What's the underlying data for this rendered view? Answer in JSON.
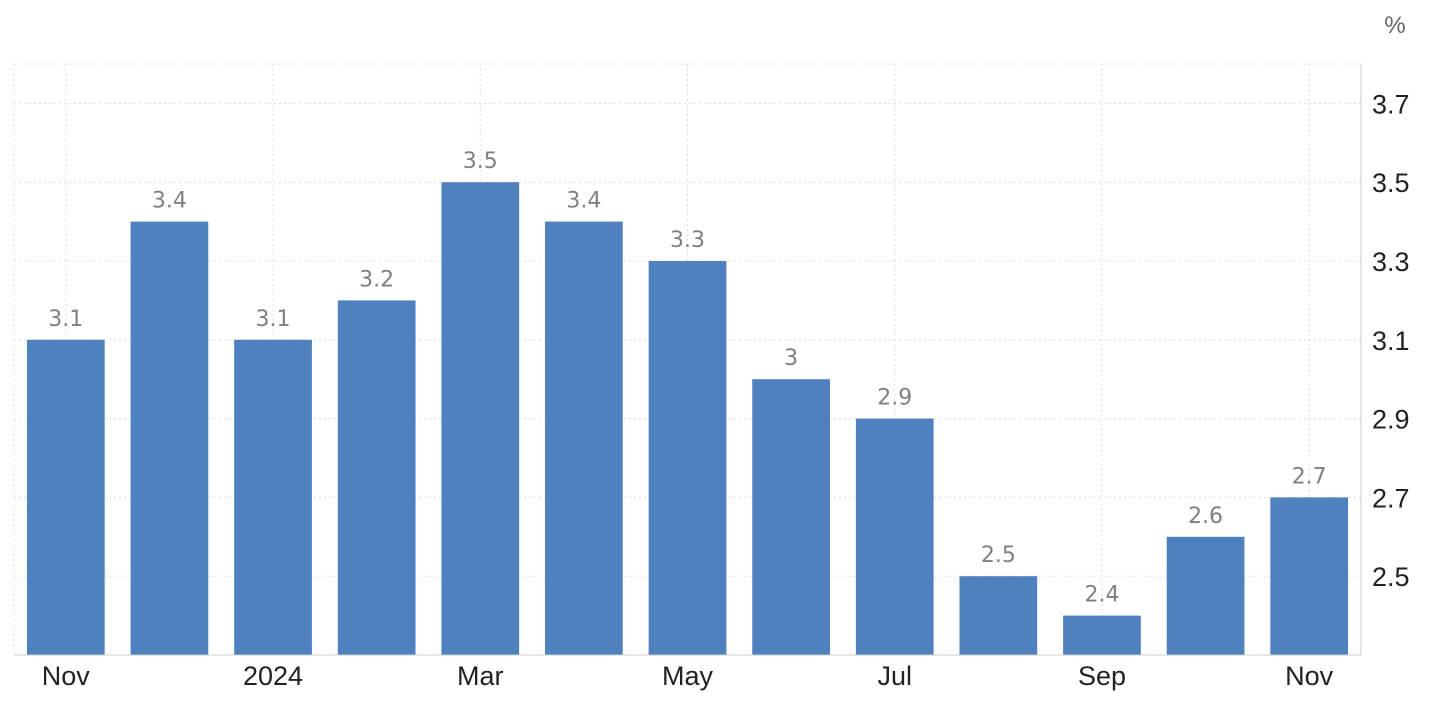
{
  "chart_data": {
    "type": "bar",
    "unit": "%",
    "categories": [
      "Nov",
      "",
      "2024",
      "",
      "Mar",
      "",
      "May",
      "",
      "Jul",
      "",
      "Sep",
      "",
      "Nov"
    ],
    "values": [
      3.1,
      3.4,
      3.1,
      3.2,
      3.5,
      3.4,
      3.3,
      3,
      2.9,
      2.5,
      2.4,
      2.6,
      2.7
    ],
    "value_labels": [
      "3.1",
      "3.4",
      "3.1",
      "3.2",
      "3.5",
      "3.4",
      "3.3",
      "3",
      "2.9",
      "2.5",
      "2.4",
      "2.6",
      "2.7"
    ],
    "y_ticks": [
      2.5,
      2.7,
      2.9,
      3.1,
      3.3,
      3.5,
      3.7
    ],
    "ylim": [
      2.3,
      3.8
    ],
    "y_axis_position": "right",
    "grid": true,
    "bar_color": "#4e81bd",
    "label_color": "#808080"
  }
}
